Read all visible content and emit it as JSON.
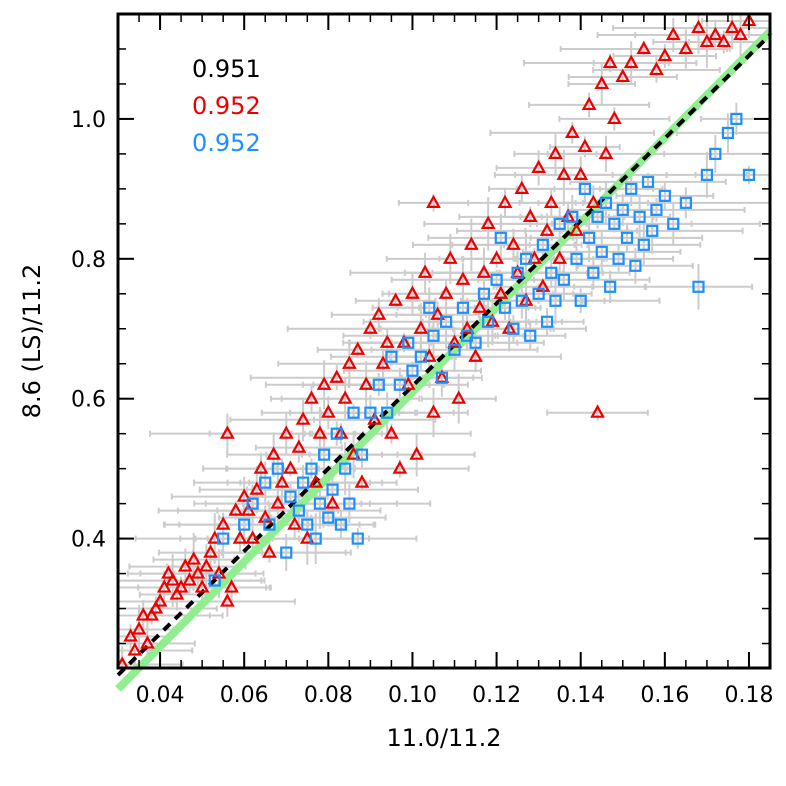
{
  "chart_data": {
    "type": "scatter",
    "xlabel": "11.0/11.2",
    "ylabel": "8.6 (LS)/11.2",
    "xlim": [
      0.03,
      0.185
    ],
    "ylim": [
      0.215,
      1.15
    ],
    "x_ticks": [
      {
        "value": 0.04,
        "label": "0.04"
      },
      {
        "value": 0.06,
        "label": "0.06"
      },
      {
        "value": 0.08,
        "label": "0.08"
      },
      {
        "value": 0.1,
        "label": "0.10"
      },
      {
        "value": 0.12,
        "label": "0.12"
      },
      {
        "value": 0.14,
        "label": "0.14"
      },
      {
        "value": 0.16,
        "label": "0.16"
      },
      {
        "value": 0.18,
        "label": "0.18"
      }
    ],
    "y_ticks": [
      {
        "value": 0.4,
        "label": "0.4"
      },
      {
        "value": 0.6,
        "label": "0.6"
      },
      {
        "value": 0.8,
        "label": "0.8"
      },
      {
        "value": 1.0,
        "label": "1.0"
      }
    ],
    "grid": false,
    "annotations": [
      {
        "text": "0.951",
        "color": "#000000"
      },
      {
        "text": "0.952",
        "color": "#ee0000"
      },
      {
        "text": "0.952",
        "color": "#1e8fff"
      }
    ],
    "colors": {
      "triangles": "#ee0000",
      "squares": "#1e8fff",
      "error_bars": "#cccccc",
      "fit_black": "#000000",
      "fit_green": "#90ee90"
    },
    "fit_lines": [
      {
        "style": "dashed",
        "color": "#000000",
        "x": [
          0.03,
          0.185
        ],
        "y": [
          0.205,
          1.12
        ]
      },
      {
        "style": "thick",
        "color": "#90ee90",
        "x": [
          0.03,
          0.185
        ],
        "y": [
          0.185,
          1.125
        ]
      }
    ],
    "series": [
      {
        "marker": "triangle",
        "color": "#ee0000",
        "points": [
          [
            0.031,
            0.22
          ],
          [
            0.033,
            0.26
          ],
          [
            0.034,
            0.24
          ],
          [
            0.035,
            0.27
          ],
          [
            0.036,
            0.29
          ],
          [
            0.037,
            0.25
          ],
          [
            0.038,
            0.29
          ],
          [
            0.039,
            0.3
          ],
          [
            0.04,
            0.31
          ],
          [
            0.041,
            0.33
          ],
          [
            0.042,
            0.35
          ],
          [
            0.043,
            0.34
          ],
          [
            0.044,
            0.32
          ],
          [
            0.045,
            0.33
          ],
          [
            0.046,
            0.36
          ],
          [
            0.047,
            0.34
          ],
          [
            0.048,
            0.37
          ],
          [
            0.049,
            0.35
          ],
          [
            0.05,
            0.33
          ],
          [
            0.051,
            0.36
          ],
          [
            0.052,
            0.38
          ],
          [
            0.053,
            0.4
          ],
          [
            0.054,
            0.35
          ],
          [
            0.055,
            0.42
          ],
          [
            0.056,
            0.31
          ],
          [
            0.056,
            0.55
          ],
          [
            0.057,
            0.33
          ],
          [
            0.058,
            0.44
          ],
          [
            0.059,
            0.4
          ],
          [
            0.06,
            0.46
          ],
          [
            0.061,
            0.44
          ],
          [
            0.062,
            0.4
          ],
          [
            0.063,
            0.47
          ],
          [
            0.064,
            0.5
          ],
          [
            0.065,
            0.43
          ],
          [
            0.066,
            0.38
          ],
          [
            0.067,
            0.52
          ],
          [
            0.068,
            0.45
          ],
          [
            0.069,
            0.48
          ],
          [
            0.07,
            0.55
          ],
          [
            0.071,
            0.5
          ],
          [
            0.072,
            0.42
          ],
          [
            0.073,
            0.53
          ],
          [
            0.074,
            0.57
          ],
          [
            0.075,
            0.4
          ],
          [
            0.076,
            0.6
          ],
          [
            0.077,
            0.48
          ],
          [
            0.078,
            0.55
          ],
          [
            0.079,
            0.62
          ],
          [
            0.08,
            0.58
          ],
          [
            0.081,
            0.45
          ],
          [
            0.082,
            0.63
          ],
          [
            0.083,
            0.55
          ],
          [
            0.084,
            0.6
          ],
          [
            0.085,
            0.65
          ],
          [
            0.086,
            0.52
          ],
          [
            0.087,
            0.67
          ],
          [
            0.088,
            0.48
          ],
          [
            0.089,
            0.62
          ],
          [
            0.09,
            0.7
          ],
          [
            0.091,
            0.57
          ],
          [
            0.092,
            0.72
          ],
          [
            0.093,
            0.65
          ],
          [
            0.094,
            0.68
          ],
          [
            0.095,
            0.55
          ],
          [
            0.096,
            0.74
          ],
          [
            0.097,
            0.5
          ],
          [
            0.098,
            0.68
          ],
          [
            0.099,
            0.62
          ],
          [
            0.1,
            0.75
          ],
          [
            0.101,
            0.52
          ],
          [
            0.102,
            0.7
          ],
          [
            0.103,
            0.78
          ],
          [
            0.104,
            0.66
          ],
          [
            0.105,
            0.58
          ],
          [
            0.105,
            0.88
          ],
          [
            0.106,
            0.72
          ],
          [
            0.107,
            0.63
          ],
          [
            0.108,
            0.75
          ],
          [
            0.109,
            0.8
          ],
          [
            0.11,
            0.68
          ],
          [
            0.111,
            0.6
          ],
          [
            0.112,
            0.77
          ],
          [
            0.113,
            0.7
          ],
          [
            0.114,
            0.82
          ],
          [
            0.115,
            0.66
          ],
          [
            0.116,
            0.73
          ],
          [
            0.117,
            0.78
          ],
          [
            0.118,
            0.85
          ],
          [
            0.119,
            0.71
          ],
          [
            0.12,
            0.8
          ],
          [
            0.121,
            0.75
          ],
          [
            0.122,
            0.88
          ],
          [
            0.123,
            0.7
          ],
          [
            0.124,
            0.82
          ],
          [
            0.125,
            0.78
          ],
          [
            0.126,
            0.9
          ],
          [
            0.127,
            0.74
          ],
          [
            0.128,
            0.86
          ],
          [
            0.129,
            0.8
          ],
          [
            0.13,
            0.93
          ],
          [
            0.131,
            0.76
          ],
          [
            0.132,
            0.84
          ],
          [
            0.133,
            0.88
          ],
          [
            0.134,
            0.95
          ],
          [
            0.135,
            0.8
          ],
          [
            0.136,
            0.92
          ],
          [
            0.137,
            0.86
          ],
          [
            0.138,
            0.98
          ],
          [
            0.139,
            0.84
          ],
          [
            0.14,
            0.92
          ],
          [
            0.141,
            0.96
          ],
          [
            0.142,
            1.02
          ],
          [
            0.143,
            0.88
          ],
          [
            0.144,
            0.58
          ],
          [
            0.145,
            1.05
          ],
          [
            0.146,
            0.95
          ],
          [
            0.147,
            1.08
          ],
          [
            0.148,
            1.0
          ],
          [
            0.15,
            1.06
          ],
          [
            0.152,
            1.08
          ],
          [
            0.155,
            1.1
          ],
          [
            0.158,
            1.07
          ],
          [
            0.16,
            1.09
          ],
          [
            0.162,
            1.12
          ],
          [
            0.165,
            1.1
          ],
          [
            0.168,
            1.13
          ],
          [
            0.17,
            1.11
          ],
          [
            0.172,
            1.12
          ],
          [
            0.174,
            1.11
          ],
          [
            0.176,
            1.13
          ],
          [
            0.178,
            1.12
          ],
          [
            0.18,
            1.14
          ]
        ]
      },
      {
        "marker": "square",
        "color": "#1e8fff",
        "points": [
          [
            0.053,
            0.34
          ],
          [
            0.055,
            0.4
          ],
          [
            0.06,
            0.42
          ],
          [
            0.062,
            0.45
          ],
          [
            0.065,
            0.48
          ],
          [
            0.066,
            0.42
          ],
          [
            0.068,
            0.5
          ],
          [
            0.07,
            0.38
          ],
          [
            0.071,
            0.46
          ],
          [
            0.073,
            0.44
          ],
          [
            0.074,
            0.48
          ],
          [
            0.075,
            0.42
          ],
          [
            0.076,
            0.5
          ],
          [
            0.077,
            0.4
          ],
          [
            0.078,
            0.45
          ],
          [
            0.079,
            0.52
          ],
          [
            0.08,
            0.43
          ],
          [
            0.081,
            0.47
          ],
          [
            0.082,
            0.55
          ],
          [
            0.083,
            0.42
          ],
          [
            0.084,
            0.5
          ],
          [
            0.085,
            0.45
          ],
          [
            0.086,
            0.58
          ],
          [
            0.087,
            0.4
          ],
          [
            0.088,
            0.52
          ],
          [
            0.09,
            0.58
          ],
          [
            0.092,
            0.62
          ],
          [
            0.094,
            0.58
          ],
          [
            0.095,
            0.66
          ],
          [
            0.097,
            0.62
          ],
          [
            0.099,
            0.68
          ],
          [
            0.1,
            0.64
          ],
          [
            0.102,
            0.66
          ],
          [
            0.104,
            0.73
          ],
          [
            0.105,
            0.69
          ],
          [
            0.107,
            0.63
          ],
          [
            0.108,
            0.71
          ],
          [
            0.11,
            0.67
          ],
          [
            0.112,
            0.73
          ],
          [
            0.113,
            0.69
          ],
          [
            0.115,
            0.68
          ],
          [
            0.117,
            0.75
          ],
          [
            0.118,
            0.71
          ],
          [
            0.12,
            0.77
          ],
          [
            0.121,
            0.83
          ],
          [
            0.122,
            0.73
          ],
          [
            0.124,
            0.7
          ],
          [
            0.125,
            0.78
          ],
          [
            0.126,
            0.74
          ],
          [
            0.127,
            0.8
          ],
          [
            0.128,
            0.69
          ],
          [
            0.13,
            0.75
          ],
          [
            0.131,
            0.82
          ],
          [
            0.132,
            0.71
          ],
          [
            0.133,
            0.78
          ],
          [
            0.134,
            0.74
          ],
          [
            0.135,
            0.85
          ],
          [
            0.136,
            0.77
          ],
          [
            0.138,
            0.86
          ],
          [
            0.139,
            0.8
          ],
          [
            0.14,
            0.74
          ],
          [
            0.141,
            0.9
          ],
          [
            0.142,
            0.83
          ],
          [
            0.143,
            0.78
          ],
          [
            0.144,
            0.86
          ],
          [
            0.145,
            0.81
          ],
          [
            0.146,
            0.88
          ],
          [
            0.147,
            0.76
          ],
          [
            0.148,
            0.85
          ],
          [
            0.149,
            0.8
          ],
          [
            0.15,
            0.87
          ],
          [
            0.151,
            0.83
          ],
          [
            0.152,
            0.9
          ],
          [
            0.153,
            0.79
          ],
          [
            0.154,
            0.86
          ],
          [
            0.155,
            0.82
          ],
          [
            0.156,
            0.91
          ],
          [
            0.157,
            0.84
          ],
          [
            0.158,
            0.87
          ],
          [
            0.16,
            0.89
          ],
          [
            0.162,
            0.85
          ],
          [
            0.165,
            0.88
          ],
          [
            0.168,
            0.76
          ],
          [
            0.17,
            0.92
          ],
          [
            0.172,
            0.95
          ],
          [
            0.175,
            0.98
          ],
          [
            0.177,
            1.0
          ],
          [
            0.18,
            0.92
          ]
        ]
      }
    ]
  }
}
